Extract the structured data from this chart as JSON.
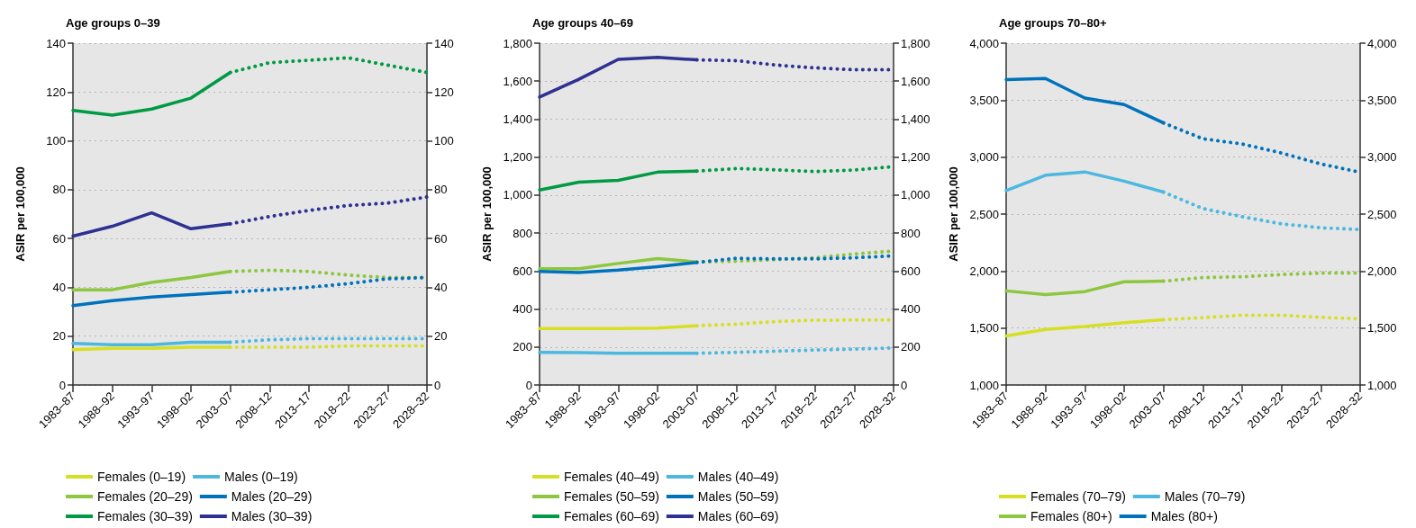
{
  "chart_data": [
    {
      "type": "line",
      "title": "Age groups 0–39",
      "ylabel": "ASIR per 100,000",
      "categories": [
        "1983–87",
        "1988–92",
        "1993–97",
        "1998–02",
        "2003–07",
        "2008–12",
        "2013–17",
        "2018–22",
        "2023–27",
        "2028–32"
      ],
      "ylim": [
        0,
        140
      ],
      "yticks": [
        0,
        20,
        40,
        60,
        80,
        100,
        120,
        140
      ],
      "y2lim": [
        0,
        140
      ],
      "y2ticks": [
        0,
        20,
        40,
        60,
        80,
        100,
        120,
        140
      ],
      "grid": "y",
      "legend": "bottom",
      "marker": "none",
      "series": [
        {
          "name": "Females (0–19)",
          "color": "#d7df23",
          "line_style": "solid",
          "values": [
            14.5,
            15,
            15,
            15.5,
            15.5,
            null,
            null,
            null,
            null,
            null
          ]
        },
        {
          "name": "Males (0–19)",
          "color": "#4cb8e0",
          "line_style": "solid",
          "values": [
            17,
            16.5,
            16.5,
            17.5,
            17.5,
            null,
            null,
            null,
            null,
            null
          ]
        },
        {
          "name": "Females (20–29)",
          "color": "#8dc63f",
          "line_style": "solid",
          "values": [
            39,
            39,
            42,
            44,
            46.5,
            null,
            null,
            null,
            null,
            null
          ]
        },
        {
          "name": "Males (20–29)",
          "color": "#0072bc",
          "line_style": "solid",
          "values": [
            32.5,
            34.5,
            36,
            37,
            38,
            null,
            null,
            null,
            null,
            null
          ]
        },
        {
          "name": "Females (30–39)",
          "color": "#009a44",
          "line_style": "solid",
          "values": [
            112.5,
            110.5,
            113,
            117.5,
            128,
            null,
            null,
            null,
            null,
            null
          ]
        },
        {
          "name": "Males (30–39)",
          "color": "#2e3192",
          "line_style": "solid",
          "values": [
            61,
            65,
            70.5,
            64,
            66,
            null,
            null,
            null,
            null,
            null
          ]
        },
        {
          "color": "#d7df23",
          "line_style": "dotted",
          "values": [
            null,
            null,
            null,
            null,
            15.5,
            15.5,
            15.5,
            16,
            16,
            16
          ]
        },
        {
          "color": "#4cb8e0",
          "line_style": "dotted",
          "values": [
            null,
            null,
            null,
            null,
            17.5,
            18.5,
            19,
            19,
            19,
            19
          ]
        },
        {
          "color": "#8dc63f",
          "line_style": "dotted",
          "values": [
            null,
            null,
            null,
            null,
            46.5,
            47,
            46.5,
            45,
            44,
            44
          ]
        },
        {
          "color": "#0072bc",
          "line_style": "dotted",
          "values": [
            null,
            null,
            null,
            null,
            38,
            39,
            40,
            41.5,
            43.5,
            44
          ]
        },
        {
          "color": "#009a44",
          "line_style": "dotted",
          "values": [
            null,
            null,
            null,
            null,
            128,
            132,
            133,
            134,
            131,
            128
          ]
        },
        {
          "color": "#2e3192",
          "line_style": "dotted",
          "values": [
            null,
            null,
            null,
            null,
            66,
            69,
            71.5,
            73.5,
            74.5,
            77
          ]
        }
      ]
    },
    {
      "type": "line",
      "title": "Age groups 40–69",
      "ylabel": "ASIR per 100,000",
      "categories": [
        "1983–87",
        "1988–92",
        "1993–97",
        "1998–02",
        "2003–07",
        "2008–12",
        "2013–17",
        "2018–22",
        "2023–27",
        "2028–32"
      ],
      "ylim": [
        0,
        1800
      ],
      "yticks": [
        0,
        200,
        400,
        600,
        800,
        {
          "value": 1000,
          "label": "1,000"
        },
        {
          "value": 1200,
          "label": "1,200"
        },
        {
          "value": 1400,
          "label": "1,400"
        },
        {
          "value": 1600,
          "label": "1,600"
        },
        {
          "value": 1800,
          "label": "1,800"
        }
      ],
      "y2lim": [
        0,
        1800
      ],
      "y2ticks": [
        0,
        200,
        400,
        600,
        800,
        {
          "value": 1000,
          "label": "1,000"
        },
        {
          "value": 1200,
          "label": "1,200"
        },
        {
          "value": 1400,
          "label": "1,400"
        },
        {
          "value": 1600,
          "label": "1,600"
        },
        {
          "value": 1800,
          "label": "1,800"
        }
      ],
      "grid": "y",
      "legend": "bottom",
      "marker": "none",
      "series": [
        {
          "name": "Females (40–49)",
          "color": "#d7df23",
          "line_style": "solid",
          "values": [
            297,
            297,
            297,
            300,
            312,
            null,
            null,
            null,
            null,
            null
          ]
        },
        {
          "name": "Males (40–49)",
          "color": "#4cb8e0",
          "line_style": "solid",
          "values": [
            172,
            170,
            167,
            167,
            167,
            null,
            null,
            null,
            null,
            null
          ]
        },
        {
          "name": "Females (50–59)",
          "color": "#8dc63f",
          "line_style": "solid",
          "values": [
            612,
            612,
            640,
            666,
            648,
            null,
            null,
            null,
            null,
            null
          ]
        },
        {
          "name": "Males (50–59)",
          "color": "#0072bc",
          "line_style": "solid",
          "values": [
            598,
            592,
            605,
            623,
            645,
            null,
            null,
            null,
            null,
            null
          ]
        },
        {
          "name": "Females (60–69)",
          "color": "#009a44",
          "line_style": "solid",
          "values": [
            1027,
            1068,
            1078,
            1121,
            1126,
            null,
            null,
            null,
            null,
            null
          ]
        },
        {
          "name": "Males (60–69)",
          "color": "#2e3192",
          "line_style": "solid",
          "values": [
            1516,
            1610,
            1715,
            1725,
            1712,
            null,
            null,
            null,
            null,
            null
          ]
        },
        {
          "color": "#d7df23",
          "line_style": "dotted",
          "values": [
            null,
            null,
            null,
            null,
            312,
            320,
            334,
            341,
            342,
            342
          ]
        },
        {
          "color": "#4cb8e0",
          "line_style": "dotted",
          "values": [
            null,
            null,
            null,
            null,
            167,
            172,
            178,
            184,
            189,
            195
          ]
        },
        {
          "color": "#8dc63f",
          "line_style": "dotted",
          "values": [
            null,
            null,
            null,
            null,
            648,
            652,
            660,
            670,
            690,
            705
          ]
        },
        {
          "color": "#0072bc",
          "line_style": "dotted",
          "values": [
            null,
            null,
            null,
            null,
            645,
            667,
            664,
            664,
            670,
            680
          ]
        },
        {
          "color": "#009a44",
          "line_style": "dotted",
          "values": [
            null,
            null,
            null,
            null,
            1126,
            1140,
            1133,
            1124,
            1132,
            1150
          ]
        },
        {
          "color": "#2e3192",
          "line_style": "dotted",
          "values": [
            null,
            null,
            null,
            null,
            1712,
            1708,
            1685,
            1670,
            1660,
            1660
          ]
        }
      ]
    },
    {
      "type": "line",
      "title": "Age groups 70–80+",
      "ylabel": "ASIR per 100,000",
      "categories": [
        "1983–87",
        "1988–92",
        "1993–97",
        "1998–02",
        "2003–07",
        "2008–12",
        "2013–17",
        "2018–22",
        "2023–27",
        "2028–32"
      ],
      "ylim": [
        1000,
        4000
      ],
      "yticks": [
        {
          "value": 1000,
          "label": "1,000"
        },
        {
          "value": 1500,
          "label": "1,500"
        },
        {
          "value": 2000,
          "label": "2,000"
        },
        {
          "value": 2500,
          "label": "2,500"
        },
        {
          "value": 3000,
          "label": "3,000"
        },
        {
          "value": 3500,
          "label": "3,500"
        },
        {
          "value": 4000,
          "label": "4,000"
        }
      ],
      "y2lim": [
        1000,
        4000
      ],
      "y2ticks": [
        {
          "value": 1000,
          "label": "1,000"
        },
        {
          "value": 1500,
          "label": "1,500"
        },
        {
          "value": 2000,
          "label": "2,000"
        },
        {
          "value": 2500,
          "label": "2,500"
        },
        {
          "value": 3000,
          "label": "3,000"
        },
        {
          "value": 3500,
          "label": "3,500"
        },
        {
          "value": 4000,
          "label": "4,000"
        }
      ],
      "grid": "y",
      "legend": "bottom",
      "marker": "none",
      "series": [
        {
          "name": "Females (70–79)",
          "color": "#d7df23",
          "line_style": "solid",
          "values": [
            1430,
            1487,
            1513,
            1547,
            1573,
            null,
            null,
            null,
            null,
            null
          ]
        },
        {
          "name": "Males (70–79)",
          "color": "#4cb8e0",
          "line_style": "solid",
          "values": [
            2706,
            2841,
            2870,
            2789,
            2693,
            null,
            null,
            null,
            null,
            null
          ]
        },
        {
          "name": "Females (80+)",
          "color": "#8dc63f",
          "line_style": "solid",
          "values": [
            1826,
            1794,
            1820,
            1906,
            1911,
            null,
            null,
            null,
            null,
            null
          ]
        },
        {
          "name": "Males (80+)",
          "color": "#0072bc",
          "line_style": "solid",
          "values": [
            3680,
            3690,
            3518,
            3461,
            3300,
            null,
            null,
            null,
            null,
            null
          ]
        },
        {
          "color": "#d7df23",
          "line_style": "dotted",
          "values": [
            null,
            null,
            null,
            null,
            1573,
            1591,
            1612,
            1612,
            1594,
            1581
          ]
        },
        {
          "color": "#4cb8e0",
          "line_style": "dotted",
          "values": [
            null,
            null,
            null,
            null,
            2693,
            2549,
            2477,
            2414,
            2380,
            2365
          ]
        },
        {
          "color": "#8dc63f",
          "line_style": "dotted",
          "values": [
            null,
            null,
            null,
            null,
            1911,
            1943,
            1950,
            1969,
            1982,
            1984
          ]
        },
        {
          "color": "#0072bc",
          "line_style": "dotted",
          "values": [
            null,
            null,
            null,
            null,
            3300,
            3161,
            3115,
            3036,
            2940,
            2867
          ]
        }
      ]
    }
  ]
}
